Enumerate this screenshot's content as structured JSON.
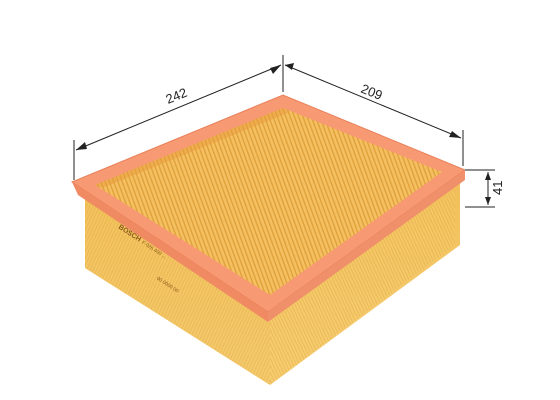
{
  "product": {
    "brand": "BOSCH",
    "part_number": "F 026 400 ...",
    "side_code": "00 0000 00"
  },
  "dimensions": {
    "length": "242",
    "width": "209",
    "height": "41"
  },
  "colors": {
    "frame": "#f79a73",
    "frame_dark": "#e9805a",
    "pleat_light": "#f7c86a",
    "pleat_dark": "#e8a838",
    "side": "#f3c35e",
    "dim_line": "#222222"
  }
}
